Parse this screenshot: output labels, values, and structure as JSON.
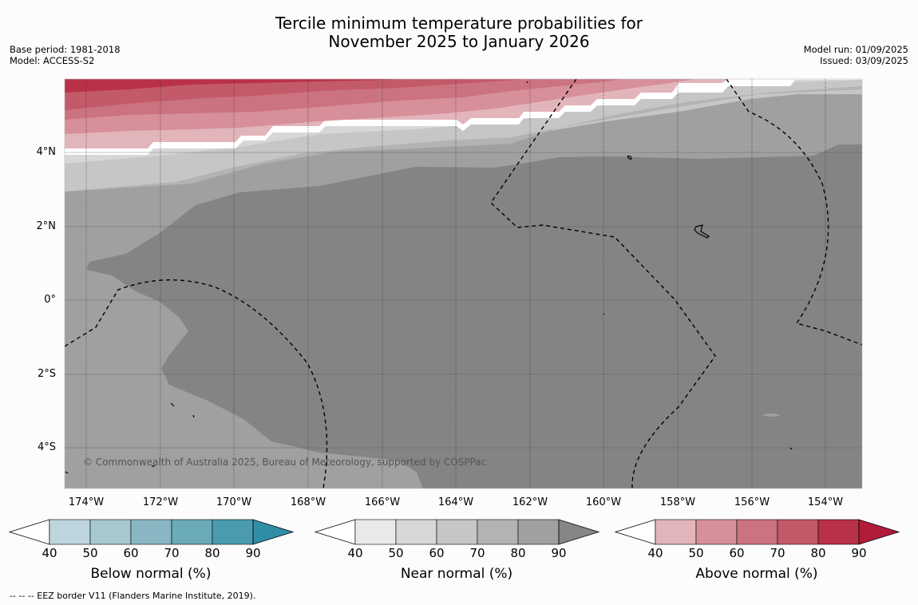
{
  "title": {
    "line1": "Tercile minimum temperature probabilities for",
    "line2": "November 2025 to January 2026"
  },
  "meta_left": {
    "base_period": "Base period: 1981-2018",
    "model": "Model: ACCESS-S2"
  },
  "meta_right": {
    "model_run": "Model run: 01/09/2025",
    "issued": "Issued: 03/09/2025"
  },
  "map": {
    "lat_labels": [
      "4°N",
      "2°N",
      "0°",
      "2°S",
      "4°S"
    ],
    "lon_labels": [
      "174°W",
      "172°W",
      "170°W",
      "168°W",
      "166°W",
      "164°W",
      "162°W",
      "160°W",
      "158°W",
      "156°W",
      "154°W"
    ],
    "copyright": "© Commonwealth of Australia 2025, Bureau of Meteorology, supported by COSPPac",
    "colors": {
      "ocean_base": "#a0a0a0",
      "near_90": "#848484",
      "above_90": "#b0273f"
    }
  },
  "colorbars": [
    {
      "title": "Below normal (%)",
      "ticks": [
        "40",
        "50",
        "60",
        "70",
        "80",
        "90"
      ],
      "colors": [
        "#ffffff",
        "#bdd5dc",
        "#a6c8cf",
        "#89b6c2",
        "#6baab7",
        "#4a9bae",
        "#2f8ea5"
      ]
    },
    {
      "title": "Near normal (%)",
      "ticks": [
        "40",
        "50",
        "60",
        "70",
        "80",
        "90"
      ],
      "colors": [
        "#ffffff",
        "#e9e9e9",
        "#d7d7d7",
        "#c6c6c6",
        "#b3b3b3",
        "#a0a0a0",
        "#868686"
      ]
    },
    {
      "title": "Above normal (%)",
      "ticks": [
        "40",
        "50",
        "60",
        "70",
        "80",
        "90"
      ],
      "colors": [
        "#ffffff",
        "#e2b5bb",
        "#d78f99",
        "#cc7380",
        "#c35a69",
        "#b93148",
        "#b01c3a"
      ]
    }
  ],
  "footnote": "--  --  -- EEZ border V11 (Flanders Marine Institute, 2019)."
}
